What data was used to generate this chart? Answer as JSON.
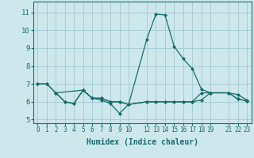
{
  "title": "",
  "xlabel": "Humidex (Indice chaleur)",
  "ylabel": "",
  "bg_color": "#cde8ed",
  "grid_color": "#a8cdd4",
  "line_color": "#1a6b6b",
  "xlim": [
    -0.5,
    23.5
  ],
  "ylim": [
    4.8,
    11.6
  ],
  "yticks": [
    5,
    6,
    7,
    8,
    9,
    10,
    11
  ],
  "xtick_positions": [
    0,
    1,
    2,
    3,
    4,
    5,
    6,
    7,
    8,
    9,
    10,
    12,
    13,
    14,
    15,
    16,
    17,
    18,
    19,
    21,
    22,
    23
  ],
  "xtick_labels": [
    "0",
    "1",
    "2",
    "3",
    "4",
    "5",
    "6",
    "7",
    "8",
    "9",
    "10",
    "12",
    "13",
    "14",
    "15",
    "16",
    "17",
    "18",
    "19",
    "21",
    "22",
    "23"
  ],
  "series": [
    {
      "x": [
        0,
        1,
        2,
        3,
        4,
        5,
        6,
        7,
        8,
        9,
        10,
        12,
        13,
        14,
        15,
        16,
        17,
        18,
        19,
        21,
        22,
        23
      ],
      "y": [
        7.0,
        7.0,
        6.5,
        6.0,
        5.9,
        6.65,
        6.2,
        6.2,
        6.0,
        6.0,
        5.85,
        9.5,
        10.9,
        10.85,
        9.1,
        8.4,
        7.85,
        6.7,
        6.5,
        6.5,
        6.4,
        6.1
      ]
    },
    {
      "x": [
        0,
        1,
        2,
        3,
        4,
        5,
        6,
        7,
        8,
        9,
        10,
        12,
        13,
        14,
        15,
        16,
        17,
        18,
        19,
        21,
        22,
        23
      ],
      "y": [
        7.0,
        7.0,
        6.5,
        6.0,
        5.9,
        6.65,
        6.2,
        6.1,
        5.9,
        5.35,
        5.85,
        6.0,
        6.0,
        6.0,
        6.0,
        6.0,
        6.0,
        6.1,
        6.5,
        6.5,
        6.15,
        6.05
      ]
    },
    {
      "x": [
        2,
        5,
        6,
        7,
        8,
        9,
        10,
        12,
        13,
        14,
        15,
        16,
        17,
        18,
        19,
        21,
        22,
        23
      ],
      "y": [
        6.5,
        6.65,
        6.2,
        6.2,
        6.0,
        6.0,
        5.85,
        6.0,
        6.0,
        6.0,
        6.0,
        6.0,
        6.0,
        6.5,
        6.5,
        6.5,
        6.15,
        6.05
      ]
    }
  ]
}
